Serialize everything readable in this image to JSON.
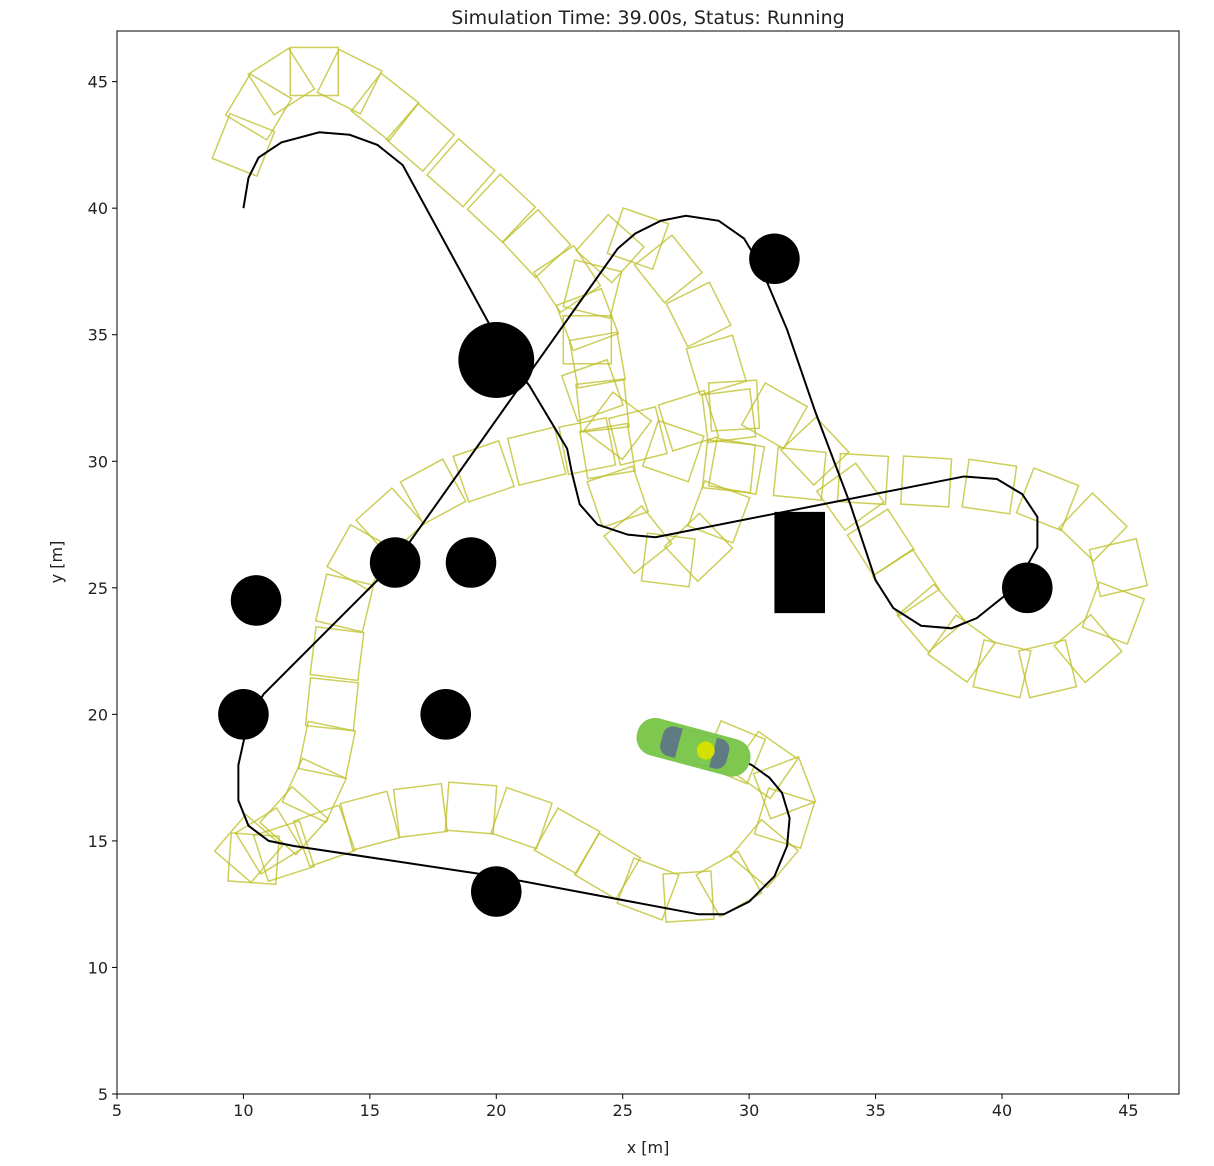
{
  "chart_data": {
    "type": "scatter",
    "title": "Simulation Time: 39.00s, Status: Running",
    "x_label": "x [m]",
    "y_label": "y [m]",
    "xlim": [
      5,
      47
    ],
    "ylim": [
      5,
      47
    ],
    "xticks": [
      5,
      10,
      15,
      20,
      25,
      30,
      35,
      40,
      45
    ],
    "yticks": [
      5,
      10,
      15,
      20,
      25,
      30,
      35,
      40,
      45
    ],
    "obstacle_color": "#000000",
    "circles": {
      "x": [
        20,
        31,
        16,
        19,
        10.5,
        10,
        18,
        41,
        20
      ],
      "y": [
        34,
        38,
        26,
        26,
        24.5,
        20,
        20,
        25,
        13
      ],
      "r": [
        1.5,
        1,
        1,
        1,
        1,
        1,
        1,
        1,
        1
      ]
    },
    "rectangles": {
      "x": [
        31
      ],
      "y": [
        24
      ],
      "width": [
        2
      ],
      "height": [
        4
      ]
    },
    "path": {
      "color": "#000000",
      "x": [
        10,
        10.2,
        10.6,
        11.5,
        13,
        14.2,
        15.3,
        16.3,
        20.5,
        21.3,
        22.2,
        22.8,
        23,
        23.3,
        24,
        25.2,
        26.3,
        38.5,
        39.8,
        40.8,
        41.4,
        41.4,
        40.5,
        39,
        38,
        36.8,
        35.7,
        35,
        34,
        32.6,
        31.5,
        30.4,
        29.8,
        28.8,
        27.5,
        26.5,
        25.5,
        24.8,
        16,
        10.8,
        10.2,
        9.8,
        9.8,
        10.2,
        11,
        12,
        20,
        28,
        29,
        30,
        31,
        31.5,
        31.6,
        31.3,
        30.8,
        30.1,
        29
      ],
      "y": [
        40,
        41.2,
        42,
        42.6,
        43,
        42.9,
        42.5,
        41.7,
        34,
        33,
        31.5,
        30.5,
        29.5,
        28.3,
        27.5,
        27.1,
        27,
        29.4,
        29.3,
        28.7,
        27.8,
        26.6,
        25,
        23.8,
        23.4,
        23.5,
        24.2,
        25.3,
        28.3,
        32,
        35.2,
        37.8,
        38.8,
        39.5,
        39.7,
        39.5,
        39,
        38.4,
        26,
        20.8,
        19.8,
        18,
        16.6,
        15.6,
        15,
        14.8,
        13.6,
        12.1,
        12.1,
        12.6,
        13.6,
        14.8,
        15.9,
        16.9,
        17.5,
        18,
        18.5
      ]
    },
    "trajectory": {
      "color": "#bcbd22",
      "x": [
        10,
        10.6,
        11.5,
        12.8,
        14.2,
        15.6,
        17,
        18.6,
        20.2,
        21.6,
        22.8,
        23.6,
        24,
        24.2,
        24.4,
        24.8,
        25.6,
        26.8,
        28,
        28.8,
        29.2,
        29.2,
        28.7,
        28,
        26.8,
        25.6,
        24.5,
        23.8,
        23.6,
        23.8,
        24.8,
        27,
        29.5,
        32,
        34.5,
        37,
        39.5,
        41.8,
        43.6,
        44.6,
        44.4,
        43.4,
        41.8,
        40,
        38.4,
        37.2,
        36.2,
        35.2,
        34,
        32.6,
        31,
        29.4,
        27.6,
        25.6,
        23.6,
        21.6,
        19.5,
        17.5,
        15.8,
        14.6,
        14,
        13.7,
        13.5,
        13.3,
        12.8,
        12,
        11,
        10.2,
        10.4,
        11.6,
        13.2,
        15,
        17,
        19,
        21,
        22.8,
        24.4,
        26,
        27.6,
        29.2,
        30.6,
        31.4,
        31.4,
        30.6,
        29.4
      ],
      "y": [
        42.5,
        44,
        45,
        45.4,
        45,
        44,
        42.8,
        41.4,
        40,
        38.6,
        37.2,
        35.6,
        34,
        32.2,
        30.4,
        28.6,
        26.9,
        26.1,
        26.6,
        28,
        29.8,
        31.8,
        33.8,
        35.8,
        37.6,
        38.8,
        38.4,
        36.8,
        34.8,
        32.8,
        31.4,
        30.4,
        29.8,
        29.5,
        29.3,
        29.2,
        29,
        28.5,
        27.4,
        25.8,
        24,
        22.6,
        21.8,
        21.8,
        22.6,
        23.8,
        25.2,
        26.8,
        28.6,
        30.4,
        31.8,
        32.2,
        31.6,
        31,
        30.6,
        30.2,
        29.6,
        28.8,
        27.6,
        26.2,
        24.4,
        22.4,
        20.4,
        18.6,
        17,
        15.8,
        15,
        14.7,
        14.3,
        14.6,
        15.2,
        15.8,
        16.2,
        16.3,
        15.9,
        15,
        14,
        13.1,
        12.8,
        13.3,
        14.5,
        15.9,
        17.1,
        18,
        18.5
      ]
    },
    "vehicle": {
      "x": 27.8,
      "y": 18.7,
      "heading": -15,
      "color": "#7ec850"
    }
  }
}
